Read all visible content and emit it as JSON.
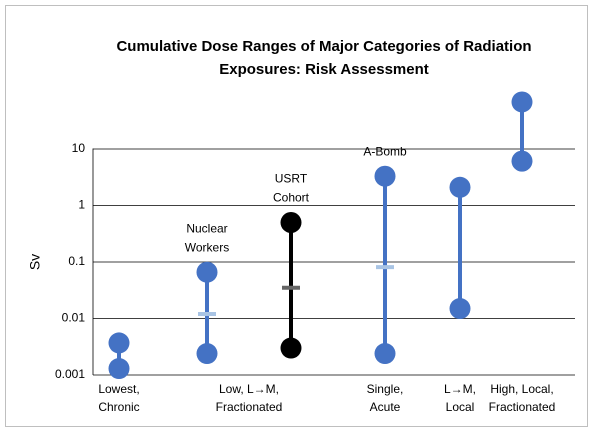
{
  "chart_data": {
    "type": "range",
    "title": [
      "Cumulative Dose Ranges of Major Categories of Radiation",
      "Exposures: Risk Assessment"
    ],
    "y_label": "Sv",
    "log_y": true,
    "ylim": [
      0.001,
      100
    ],
    "yticks": [
      0.001,
      0.01,
      0.1,
      1,
      10
    ],
    "grid": true,
    "groups": [
      {
        "label": [
          "Lowest,",
          "Chronic"
        ],
        "ranges": [
          {
            "low": 0.0013,
            "high": 0.0037,
            "color": "#4472c4"
          }
        ]
      },
      {
        "label": [
          "Low, L→M,",
          "Fractionated"
        ],
        "ranges": [
          {
            "annotation": [
              "Nuclear",
              "Workers"
            ],
            "low": 0.0024,
            "high": 0.066,
            "mid": 0.012,
            "color": "#4472c4",
            "mid_color": "#a9c4e4"
          },
          {
            "annotation": [
              "USRT",
              "Cohort"
            ],
            "low": 0.003,
            "high": 0.5,
            "mid": 0.035,
            "color": "#000000",
            "mid_color": "#666666"
          }
        ]
      },
      {
        "label": [
          "Single,",
          "Acute"
        ],
        "ranges": [
          {
            "annotation": [
              "A-Bomb"
            ],
            "low": 0.0024,
            "high": 3.3,
            "mid": 0.081,
            "color": "#4472c4",
            "mid_color": "#a9c4e4"
          }
        ]
      },
      {
        "label": [
          "L→M,",
          "Local"
        ],
        "ranges": [
          {
            "low": 0.015,
            "high": 2.1,
            "color": "#4472c4"
          }
        ]
      },
      {
        "label": [
          "High, Local,",
          "Fractionated"
        ],
        "ranges": [
          {
            "low": 6.1,
            "high": 68,
            "color": "#4472c4"
          }
        ]
      }
    ]
  }
}
